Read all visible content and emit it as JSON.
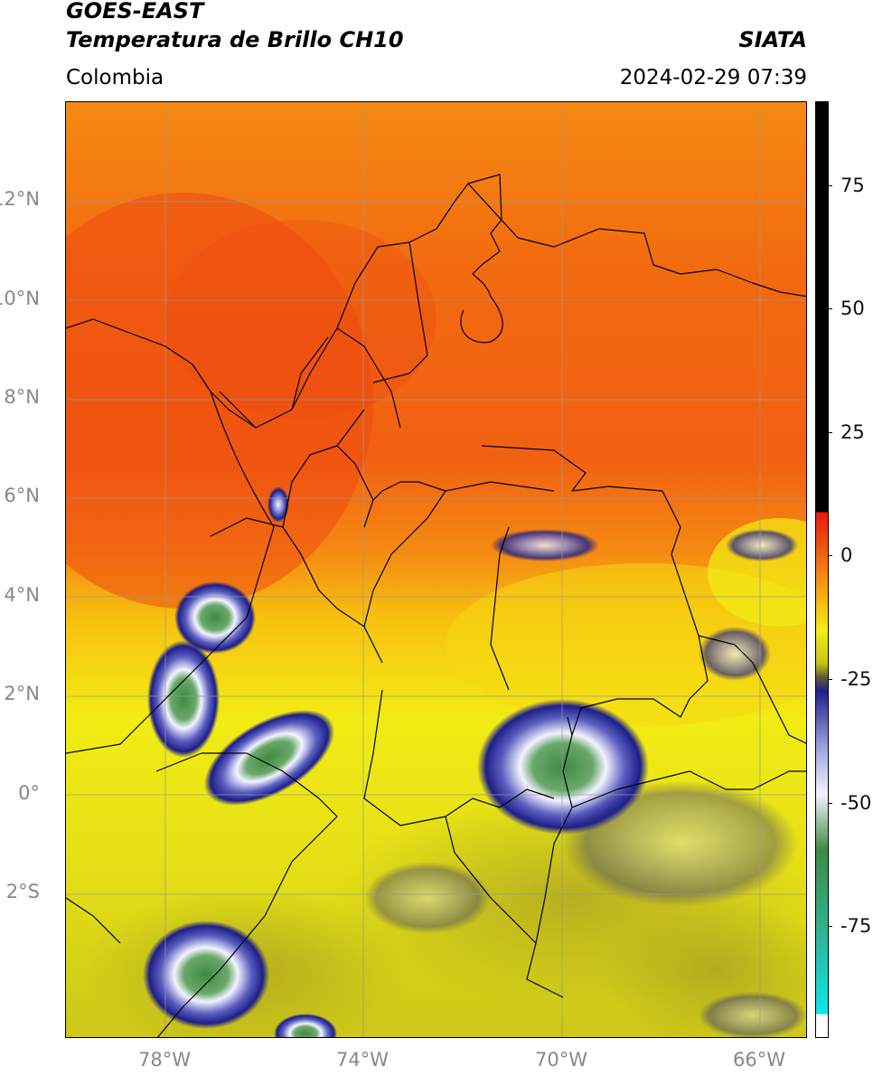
{
  "header": {
    "title_line1": "GOES-EAST",
    "title_line2": "Temperatura de Brillo CH10",
    "region": "Colombia",
    "agency": "SIATA",
    "datetime": "2024-02-29 07:39"
  },
  "map": {
    "lat_labels": [
      "12°N",
      "10°N",
      "8°N",
      "6°N",
      "4°N",
      "2°N",
      "0°",
      "2°S"
    ],
    "lon_labels": [
      "78°W",
      "74°W",
      "70°W",
      "66°W"
    ],
    "colors": {
      "warm_red": "#f04a10",
      "orange": "#f58a12",
      "yellow": "#f2ee14",
      "olive": "#c9c418",
      "navy": "#1e1f8a",
      "white": "#f3f3ff",
      "green": "#3f8a42",
      "border": "#000000",
      "grid": "#999999"
    }
  },
  "colorbar": {
    "ticks": [
      "75",
      "50",
      "25",
      "0",
      "-25",
      "-50",
      "-75"
    ]
  }
}
